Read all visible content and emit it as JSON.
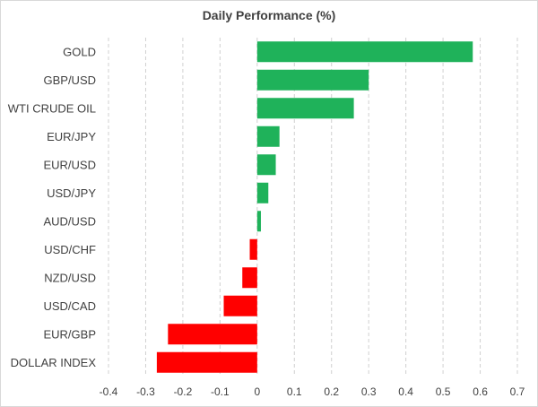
{
  "chart_data": {
    "type": "bar",
    "orientation": "horizontal",
    "title": "Daily Performance (%)",
    "categories": [
      "GOLD",
      "GBP/USD",
      "WTI CRUDE OIL",
      "EUR/JPY",
      "EUR/USD",
      "USD/JPY",
      "AUD/USD",
      "USD/CHF",
      "NZD/USD",
      "USD/CAD",
      "EUR/GBP",
      "DOLLAR INDEX"
    ],
    "values": [
      0.58,
      0.3,
      0.26,
      0.06,
      0.05,
      0.03,
      0.01,
      -0.02,
      -0.04,
      -0.09,
      -0.24,
      -0.27
    ],
    "xlim": [
      -0.4,
      0.7
    ],
    "xticks": [
      "-0.4",
      "-0.3",
      "-0.2",
      "-0.1",
      "0",
      "0.1",
      "0.2",
      "0.3",
      "0.4",
      "0.5",
      "0.6",
      "0.7"
    ],
    "grid": "vertical dashed",
    "colors": {
      "positive": "#1fb25a",
      "negative": "#ff0000"
    }
  }
}
